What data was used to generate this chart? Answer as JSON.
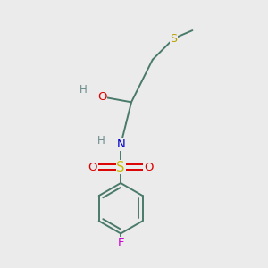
{
  "bg_color": "#ebebeb",
  "bond_color": "#4a7a6a",
  "atom_colors": {
    "S_thio": "#b8a000",
    "S_sulfonyl": "#ccb800",
    "O": "#dd0000",
    "N": "#0000cc",
    "F": "#cc00cc",
    "H": "#6a8a8a",
    "C": "#4a7a6a"
  },
  "figsize": [
    3.0,
    3.0
  ],
  "dpi": 100,
  "bond_lw": 1.4,
  "font_size": 8.5
}
